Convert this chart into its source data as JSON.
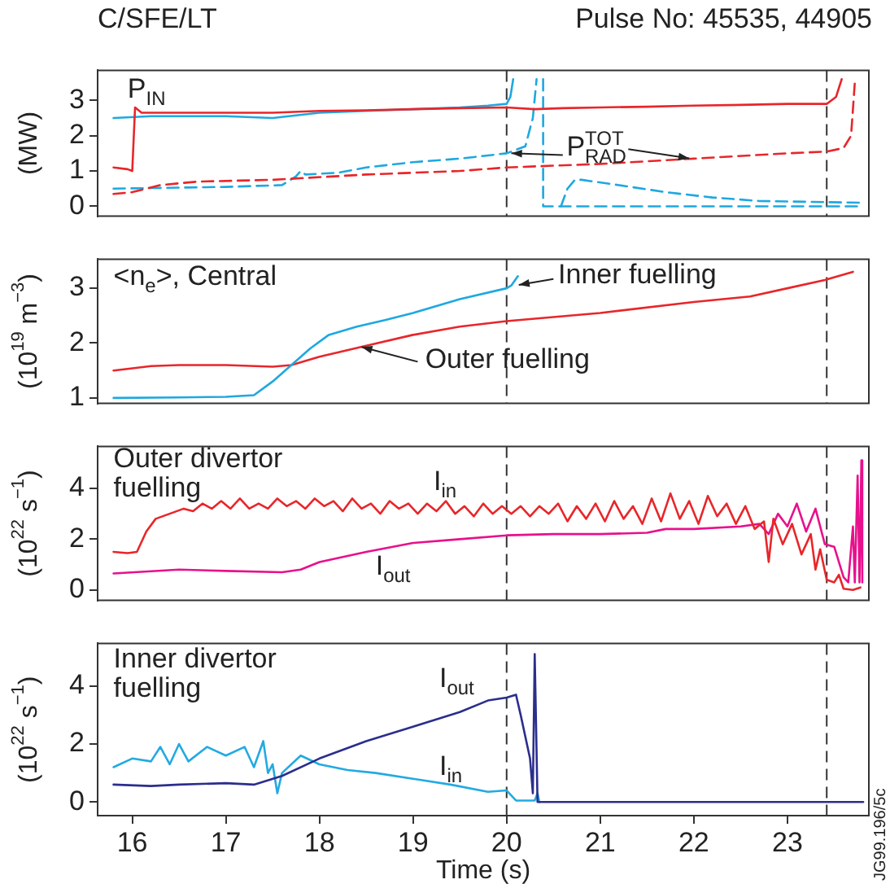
{
  "chart_data": [
    {
      "type": "line",
      "title": "C/SFE/LT",
      "subtitle": "Pulse No: 45535, 44905",
      "ylabel": "(MW)",
      "xlim": [
        15.63,
        23.87
      ],
      "ylim": [
        -0.28,
        3.85
      ],
      "yticks": [
        0,
        1,
        2,
        3
      ],
      "tick_labels": "y",
      "legend": false,
      "grid": false,
      "marker": "none",
      "annotations": [
        "P$_{IN}$",
        {
          "text": "P$^{TOT}$$_{RAD}$",
          "x": 20.05,
          "y": 1.5
        }
      ],
      "ref_lines": [
        {
          "axis": "x",
          "value": 20.0,
          "color": "#333333",
          "line_style": "dashed"
        },
        {
          "axis": "x",
          "value": 23.42,
          "color": "#333333",
          "line_style": "dashed"
        }
      ],
      "series": [
        {
          "color": "#e8262a",
          "line_style": "solid",
          "x": [
            15.8,
            15.95,
            16.0,
            16.03,
            16.1,
            16.5,
            17,
            17.5,
            18,
            18.5,
            19,
            19.5,
            20,
            20.3,
            20.6,
            21,
            21.5,
            22,
            22.5,
            23,
            23.42,
            23.52,
            23.58
          ],
          "values": [
            1.1,
            1.05,
            1.0,
            2.8,
            2.65,
            2.65,
            2.65,
            2.65,
            2.7,
            2.72,
            2.75,
            2.78,
            2.8,
            2.75,
            2.78,
            2.8,
            2.82,
            2.85,
            2.87,
            2.9,
            2.9,
            3.1,
            3.6
          ]
        },
        {
          "color": "#1ea8e0",
          "line_style": "solid",
          "x": [
            15.8,
            16.2,
            16.5,
            17,
            17.5,
            18,
            18.5,
            19,
            19.5,
            19.8,
            20.0,
            20.04,
            20.07
          ],
          "values": [
            2.5,
            2.55,
            2.55,
            2.55,
            2.5,
            2.65,
            2.7,
            2.75,
            2.8,
            2.85,
            2.9,
            3.1,
            3.6
          ]
        },
        {
          "color": "#e8262a",
          "line_style": "dashed",
          "x": [
            15.8,
            16.0,
            16.3,
            16.7,
            17.5,
            18.5,
            19.5,
            20,
            21,
            22,
            23,
            23.42,
            23.6,
            23.68,
            23.72
          ],
          "values": [
            0.35,
            0.4,
            0.6,
            0.7,
            0.75,
            0.9,
            1.0,
            1.1,
            1.2,
            1.35,
            1.5,
            1.55,
            1.65,
            2.0,
            3.5
          ]
        },
        {
          "color": "#1ea8e0",
          "line_style": "dashed",
          "x": [
            15.8,
            17,
            17.6,
            17.75,
            17.8,
            17.85,
            18.2,
            18.5,
            19,
            19.5,
            20,
            20.2,
            20.28,
            20.32,
            20.36,
            20.39,
            20.39,
            23.81
          ],
          "values": [
            0.5,
            0.55,
            0.6,
            0.85,
            1.0,
            0.9,
            0.95,
            1.1,
            1.25,
            1.35,
            1.5,
            1.7,
            2.5,
            3.6,
            null,
            3.6,
            0,
            0
          ]
        },
        {
          "color": "#1ea8e0",
          "line_style": "dashed",
          "x": [
            20.58,
            20.65,
            20.73,
            20.8,
            21.2,
            21.7,
            22.2,
            22.7,
            23.4,
            23.8
          ],
          "values": [
            0,
            0.5,
            0.75,
            0.75,
            0.6,
            0.4,
            0.25,
            0.15,
            0.12,
            0.1
          ]
        }
      ]
    },
    {
      "type": "line",
      "ylabel": "(10$^{19}$ m$^{−3}$)",
      "xlim": [
        15.63,
        23.87
      ],
      "ylim": [
        0.9,
        3.53
      ],
      "yticks": [
        1,
        2,
        3
      ],
      "tick_labels": "y",
      "legend": false,
      "grid": false,
      "marker": "none",
      "annotations": [
        "<n$_{e}$>, Central",
        {
          "text": "Inner fuelling",
          "x": 20.13,
          "y": 3.06
        },
        {
          "text": "Outer fuelling",
          "x": 18.45,
          "y": 1.93
        }
      ],
      "ref_lines": [
        {
          "axis": "x",
          "value": 20.0,
          "color": "#333333",
          "line_style": "dashed"
        },
        {
          "axis": "x",
          "value": 23.42,
          "color": "#333333",
          "line_style": "dashed"
        }
      ],
      "series": [
        {
          "color": "#1ea8e0",
          "line_style": "solid",
          "x": [
            15.8,
            16.5,
            17.0,
            17.3,
            17.5,
            17.7,
            17.9,
            18.1,
            18.4,
            18.7,
            19,
            19.5,
            20.0,
            20.05,
            20.12
          ],
          "values": [
            1.0,
            1.01,
            1.02,
            1.05,
            1.3,
            1.6,
            1.9,
            2.15,
            2.3,
            2.42,
            2.55,
            2.8,
            3.0,
            3.05,
            3.22
          ]
        },
        {
          "color": "#e8262a",
          "line_style": "solid",
          "x": [
            15.8,
            16.2,
            16.5,
            17,
            17.5,
            17.7,
            18,
            18.5,
            19,
            19.5,
            20,
            21,
            22,
            22.6,
            23,
            23.4,
            23.7
          ],
          "values": [
            1.5,
            1.58,
            1.6,
            1.6,
            1.57,
            1.6,
            1.75,
            1.95,
            2.15,
            2.3,
            2.4,
            2.55,
            2.75,
            2.85,
            3.0,
            3.15,
            3.3
          ]
        }
      ]
    },
    {
      "type": "line",
      "ylabel": "(10$^{22}$ s$^{−1}$)",
      "xlim": [
        15.63,
        23.87
      ],
      "ylim": [
        -0.41,
        5.65
      ],
      "yticks": [
        0,
        2,
        4
      ],
      "tick_labels": "y",
      "legend": false,
      "grid": false,
      "marker": "none",
      "annotations": [
        "Outer divertor fuelling",
        "I$_{in}$",
        "I$_{out}$"
      ],
      "ref_lines": [
        {
          "axis": "x",
          "value": 20.0,
          "color": "#333333",
          "line_style": "dashed"
        },
        {
          "axis": "x",
          "value": 23.42,
          "color": "#333333",
          "line_style": "dashed"
        }
      ],
      "series": [
        {
          "color": "#e8262a",
          "line_style": "solid",
          "x": [
            15.8,
            15.95,
            16.05,
            16.15,
            16.25,
            16.4,
            16.55,
            16.65,
            16.75,
            16.85,
            16.95,
            17.05,
            17.15,
            17.25,
            17.35,
            17.45,
            17.55,
            17.65,
            17.75,
            17.85,
            17.95,
            18.05,
            18.15,
            18.25,
            18.35,
            18.45,
            18.55,
            18.65,
            18.75,
            18.85,
            18.95,
            19.05,
            19.15,
            19.25,
            19.35,
            19.45,
            19.55,
            19.65,
            19.75,
            19.85,
            19.95,
            20.05,
            20.15,
            20.25,
            20.35,
            20.45,
            20.55,
            20.65,
            20.75,
            20.85,
            20.95,
            21.05,
            21.15,
            21.25,
            21.35,
            21.45,
            21.55,
            21.65,
            21.75,
            21.85,
            21.95,
            22.05,
            22.15,
            22.25,
            22.35,
            22.45,
            22.55,
            22.65,
            22.75,
            22.8,
            22.85,
            22.95,
            23.05,
            23.15,
            23.25,
            23.3,
            23.35,
            23.42,
            23.5,
            23.55,
            23.6,
            23.7,
            23.78
          ],
          "values": [
            1.5,
            1.45,
            1.5,
            2.3,
            2.8,
            3.0,
            3.2,
            3.1,
            3.4,
            3.2,
            3.5,
            3.2,
            3.6,
            3.2,
            3.4,
            3.2,
            3.6,
            3.3,
            3.5,
            3.2,
            3.6,
            3.3,
            3.5,
            3.1,
            3.6,
            3.2,
            3.4,
            3.0,
            3.5,
            3.2,
            3.4,
            3.0,
            3.4,
            3.1,
            3.5,
            3.0,
            3.3,
            2.9,
            3.4,
            3.0,
            3.3,
            3.0,
            3.3,
            2.9,
            3.3,
            3.0,
            3.4,
            2.7,
            3.3,
            2.8,
            3.4,
            2.7,
            3.5,
            2.8,
            3.3,
            2.6,
            3.6,
            2.7,
            3.8,
            2.8,
            3.5,
            2.6,
            3.7,
            2.9,
            3.4,
            2.6,
            3.3,
            2.4,
            2.7,
            1.1,
            2.8,
            1.8,
            2.6,
            1.4,
            2.2,
            0.8,
            1.6,
            0.4,
            0.3,
            0.6,
            0.05,
            0.0,
            0.1
          ]
        },
        {
          "color": "#e8108c",
          "line_style": "solid",
          "x": [
            15.8,
            16.5,
            17,
            17.6,
            17.8,
            18.0,
            18.5,
            19,
            19.5,
            20,
            20.5,
            21,
            21.5,
            21.7,
            22,
            22.5,
            22.7,
            22.8,
            22.9,
            23.0,
            23.1,
            23.2,
            23.3,
            23.4,
            23.5,
            23.6,
            23.65,
            23.7,
            23.72,
            23.75,
            23.77,
            23.79,
            23.8
          ],
          "values": [
            0.65,
            0.8,
            0.75,
            0.7,
            0.8,
            1.1,
            1.5,
            1.85,
            2.0,
            2.15,
            2.2,
            2.2,
            2.25,
            2.4,
            2.4,
            2.5,
            2.6,
            2.2,
            3.0,
            2.5,
            3.4,
            2.3,
            3.2,
            1.8,
            1.7,
            0.5,
            0.3,
            2.5,
            0.3,
            4.5,
            0.3,
            5.1,
            0.3
          ]
        }
      ]
    },
    {
      "type": "line",
      "ylabel": "(10$^{22}$ s$^{−1}$)",
      "xlabel": "Time (s)",
      "xlim": [
        15.63,
        23.87
      ],
      "ylim": [
        -0.47,
        5.47
      ],
      "xticks": [
        16,
        17,
        18,
        19,
        20,
        21,
        22,
        23
      ],
      "yticks": [
        0,
        2,
        4
      ],
      "legend": false,
      "grid": false,
      "marker": "none",
      "annotations": [
        "Inner divertor fuelling",
        "I$_{out}$",
        "I$_{in}$",
        "JG99.196/5c"
      ],
      "ref_lines": [
        {
          "axis": "x",
          "value": 20.0,
          "color": "#333333",
          "line_style": "dashed"
        },
        {
          "axis": "x",
          "value": 23.42,
          "color": "#333333",
          "line_style": "dashed"
        }
      ],
      "series": [
        {
          "color": "#2b2e8c",
          "line_style": "solid",
          "x": [
            15.8,
            16.2,
            16.5,
            17,
            17.3,
            17.6,
            18,
            18.5,
            19,
            19.5,
            19.8,
            20,
            20.1,
            20.15,
            20.25,
            20.28,
            20.3,
            20.33,
            23.81
          ],
          "values": [
            0.6,
            0.55,
            0.6,
            0.65,
            0.6,
            0.9,
            1.5,
            2.1,
            2.6,
            3.1,
            3.5,
            3.6,
            3.7,
            3.0,
            1.5,
            0.3,
            5.1,
            0.0,
            0.0
          ]
        },
        {
          "color": "#22aae2",
          "line_style": "solid",
          "x": [
            15.8,
            16,
            16.2,
            16.3,
            16.4,
            16.5,
            16.6,
            16.8,
            17,
            17.2,
            17.3,
            17.4,
            17.45,
            17.5,
            17.55,
            17.6,
            17.8,
            18,
            18.3,
            18.6,
            19,
            19.4,
            19.8,
            20,
            20.1,
            20.3,
            20.33,
            20.35
          ],
          "values": [
            1.2,
            1.5,
            1.4,
            1.9,
            1.3,
            2.0,
            1.4,
            1.9,
            1.6,
            1.9,
            1.2,
            2.1,
            1.0,
            1.3,
            0.3,
            1.0,
            1.6,
            1.3,
            1.1,
            1.0,
            0.8,
            0.6,
            0.35,
            0.4,
            0.05,
            0.05,
            0.3,
            0.0
          ]
        }
      ]
    }
  ]
}
